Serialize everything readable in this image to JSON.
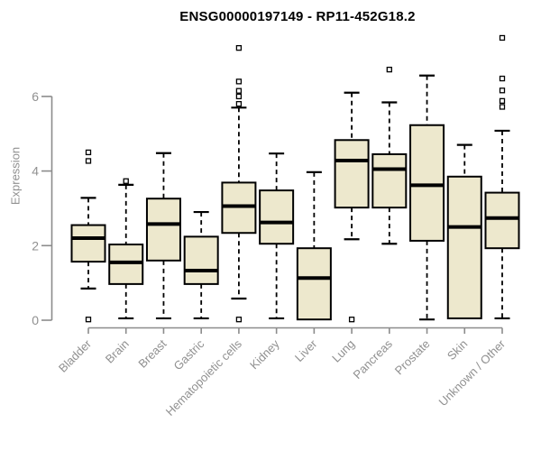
{
  "colors": {
    "box_fill": "#EDE8CD",
    "box_stroke": "#000000",
    "median": "#000000",
    "whisker": "#000000",
    "outlier_fill": "#FFFFFF",
    "axis": "#8C8C8C",
    "tick_label": "#909090",
    "title": "#000000",
    "background": "#FFFFFF"
  },
  "chart_data": {
    "type": "box",
    "title": "ENSG00000197149 - RP11-452G18.2",
    "ylabel": "Expression",
    "xlabel": "",
    "yticks": [
      0,
      2,
      4,
      6
    ],
    "ylim": [
      0,
      7.8
    ],
    "grid": false,
    "legend": "none",
    "categories": [
      "Bladder",
      "Brain",
      "Breast",
      "Gastric",
      "Hematopoietic cells",
      "Kidney",
      "Liver",
      "Lung",
      "Pancreas",
      "Prostate",
      "Skin",
      "Unknown / Other"
    ],
    "boxes": [
      {
        "label": "Bladder",
        "low": 0.85,
        "q1": 1.57,
        "median": 2.2,
        "q3": 2.55,
        "high": 3.28,
        "outliers": [
          4.5,
          4.27,
          0.02
        ]
      },
      {
        "label": "Brain",
        "low": 0.05,
        "q1": 0.97,
        "median": 1.55,
        "q3": 2.03,
        "high": 3.63,
        "outliers": [
          3.73
        ]
      },
      {
        "label": "Breast",
        "low": 0.05,
        "q1": 1.6,
        "median": 2.58,
        "q3": 3.26,
        "high": 4.48,
        "outliers": []
      },
      {
        "label": "Gastric",
        "low": 0.05,
        "q1": 0.97,
        "median": 1.33,
        "q3": 2.24,
        "high": 2.9,
        "outliers": []
      },
      {
        "label": "Hematopoietic cells",
        "low": 0.58,
        "q1": 2.34,
        "median": 3.06,
        "q3": 3.69,
        "high": 5.7,
        "outliers": [
          7.3,
          6.4,
          6.15,
          6.0,
          5.8,
          0.02
        ]
      },
      {
        "label": "Kidney",
        "low": 0.05,
        "q1": 2.05,
        "median": 2.62,
        "q3": 3.48,
        "high": 4.47,
        "outliers": []
      },
      {
        "label": "Liver",
        "low": 0.02,
        "q1": 0.02,
        "median": 1.13,
        "q3": 1.93,
        "high": 3.97,
        "outliers": []
      },
      {
        "label": "Lung",
        "low": 2.17,
        "q1": 3.02,
        "median": 4.28,
        "q3": 4.83,
        "high": 6.1,
        "outliers": [
          0.02
        ]
      },
      {
        "label": "Pancreas",
        "low": 2.05,
        "q1": 3.02,
        "median": 4.05,
        "q3": 4.45,
        "high": 5.84,
        "outliers": [
          6.72
        ]
      },
      {
        "label": "Prostate",
        "low": 0.02,
        "q1": 2.13,
        "median": 3.62,
        "q3": 5.23,
        "high": 6.56,
        "outliers": []
      },
      {
        "label": "Skin",
        "low": 0.05,
        "q1": 0.05,
        "median": 2.5,
        "q3": 3.85,
        "high": 4.7,
        "outliers": []
      },
      {
        "label": "Unknown / Other",
        "low": 0.05,
        "q1": 1.93,
        "median": 2.74,
        "q3": 3.42,
        "high": 5.08,
        "outliers": [
          7.57,
          6.48,
          6.16,
          5.88,
          5.72
        ]
      }
    ]
  }
}
